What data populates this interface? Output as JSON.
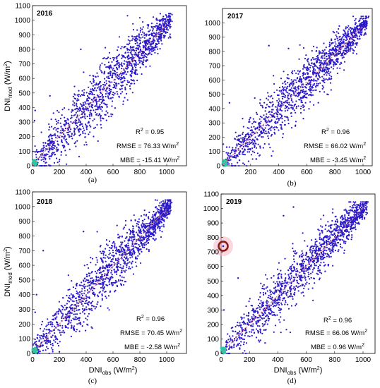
{
  "chart_data": [
    {
      "type": "scatter",
      "panel": "(a)",
      "year_label": "2016",
      "xlabel": "",
      "ylabel": "DNI_mod (W/m2)",
      "xlim": [
        0,
        1100
      ],
      "ylim": [
        0,
        1100
      ],
      "xticks": [
        "0",
        "200",
        "400",
        "600",
        "800",
        "1000"
      ],
      "yticks": [
        "0",
        "100",
        "200",
        "300",
        "400",
        "500",
        "600",
        "700",
        "800",
        "900",
        "1000",
        "1100"
      ],
      "stats": {
        "r2": "0.95",
        "rmse": "76.33 W/m",
        "mbe": "-15.41 W/m"
      },
      "fit": {
        "slope": 0.96,
        "intercept": 10
      },
      "spread": 75,
      "outliers": [
        [
          360,
          800
        ],
        [
          130,
          480
        ],
        [
          20,
          380
        ],
        [
          15,
          310
        ]
      ]
    },
    {
      "type": "scatter",
      "panel": "(b)",
      "year_label": "2017",
      "xlabel": "",
      "ylabel": "",
      "xlim": [
        0,
        1100
      ],
      "ylim": [
        0,
        1100
      ],
      "xticks": [
        "0",
        "200",
        "400",
        "600",
        "800",
        "1000"
      ],
      "yticks": [
        "0",
        "100",
        "200",
        "300",
        "400",
        "500",
        "600",
        "700",
        "800",
        "900",
        "1000"
      ],
      "stats": {
        "r2": "0.96",
        "rmse": "66.02 W/m",
        "mbe": "-3.45 W/m"
      },
      "fit": {
        "slope": 0.97,
        "intercept": 5
      },
      "spread": 65,
      "outliers": [
        [
          330,
          840
        ],
        [
          470,
          820
        ],
        [
          30,
          130
        ],
        [
          50,
          440
        ]
      ]
    },
    {
      "type": "scatter",
      "panel": "(c)",
      "year_label": "2018",
      "xlabel": "DNI_obs (W/m2)",
      "ylabel": "DNI_mod (W/m2)",
      "xlim": [
        0,
        1100
      ],
      "ylim": [
        0,
        1100
      ],
      "xticks": [
        "0",
        "200",
        "400",
        "600",
        "800",
        "1000"
      ],
      "yticks": [
        "0",
        "100",
        "200",
        "300",
        "400",
        "500",
        "600",
        "700",
        "800",
        "900",
        "1000",
        "1100"
      ],
      "stats": {
        "r2": "0.96",
        "rmse": "70.45 W/m",
        "mbe": "-2.58 W/m"
      },
      "fit": {
        "slope": 0.98,
        "intercept": 5
      },
      "spread": 70,
      "outliers": [
        [
          80,
          700
        ],
        [
          380,
          830
        ],
        [
          30,
          400
        ],
        [
          20,
          280
        ]
      ]
    },
    {
      "type": "scatter",
      "panel": "(d)",
      "year_label": "2019",
      "xlabel": "DNI_obs (W/m2)",
      "ylabel": "",
      "xlim": [
        0,
        1100
      ],
      "ylim": [
        0,
        1100
      ],
      "xticks": [
        "0",
        "200",
        "400",
        "600",
        "800",
        "1000"
      ],
      "yticks": [
        "0",
        "100",
        "200",
        "300",
        "400",
        "500",
        "600",
        "700",
        "800",
        "900",
        "1000",
        "1100"
      ],
      "stats": {
        "r2": "0.96",
        "rmse": "66.06 W/m",
        "mbe": "0.96 W/m"
      },
      "fit": {
        "slope": 1.0,
        "intercept": 0
      },
      "spread": 66,
      "outliers": [
        [
          440,
          950
        ],
        [
          510,
          1010
        ],
        [
          120,
          520
        ],
        [
          20,
          300
        ]
      ],
      "highlight": [
        15,
        740
      ]
    }
  ],
  "colors": {
    "points": "#2b19c9",
    "fit_line": "#e8707a",
    "dense_core": "#28c9a8",
    "highlight_ring": "#8b1a1a",
    "highlight_glow": "#f6b7c4"
  }
}
